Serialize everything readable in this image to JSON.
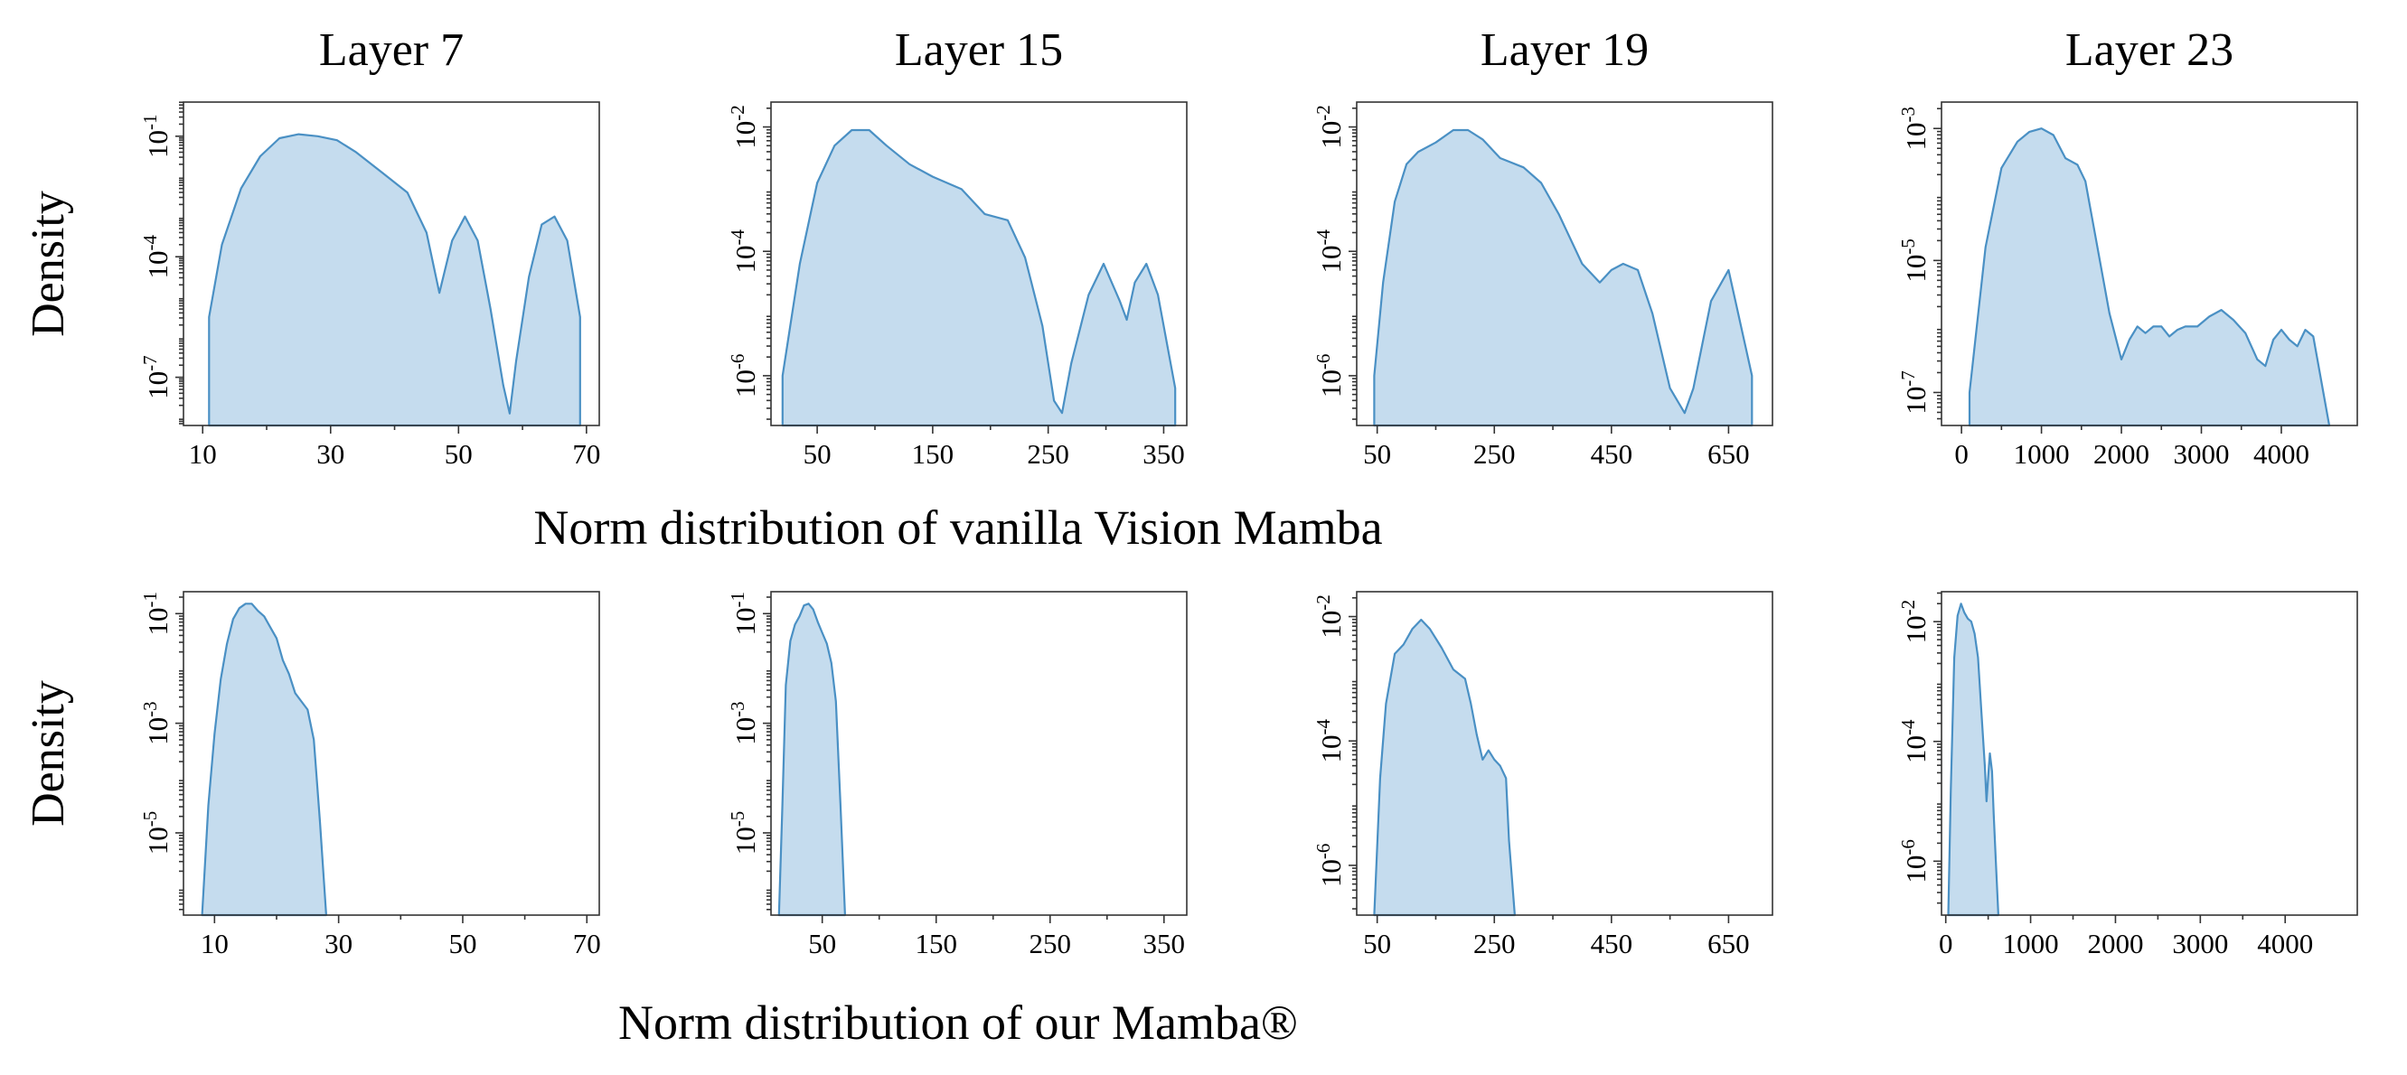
{
  "row_captions": [
    "Norm distribution of vanilla Vision Mamba",
    "Norm distribution of our Mamba®"
  ],
  "chart_data": [
    {
      "row": 0,
      "col": 0,
      "type": "area",
      "title": "Layer 7",
      "ylabel": "Density",
      "yscale": "log",
      "xlim": [
        7,
        72
      ],
      "ylim": [
        -8.2,
        -0.15
      ],
      "xticks": [
        10,
        30,
        50,
        70
      ],
      "xtick_labels": [
        "10",
        "30",
        "50",
        "70"
      ],
      "yticks": [
        -1,
        -4,
        -7
      ],
      "ytick_labels": [
        "10-1",
        "10-4",
        "10-7"
      ],
      "x": [
        11,
        13,
        16,
        19,
        22,
        25,
        28,
        31,
        34,
        38,
        42,
        45,
        47,
        49,
        51,
        53,
        55,
        57,
        58,
        59,
        61,
        63,
        65,
        67,
        69
      ],
      "log10_y": [
        -5.5,
        -3.7,
        -2.3,
        -1.5,
        -1.05,
        -0.95,
        -1.0,
        -1.1,
        -1.4,
        -1.9,
        -2.4,
        -3.4,
        -4.9,
        -3.6,
        -3.0,
        -3.6,
        -5.3,
        -7.2,
        -7.9,
        -6.6,
        -4.5,
        -3.2,
        -3.0,
        -3.6,
        -5.5
      ]
    },
    {
      "row": 0,
      "col": 1,
      "type": "area",
      "title": "Layer 15",
      "ylabel": "",
      "yscale": "log",
      "xlim": [
        10,
        370
      ],
      "ylim": [
        -6.8,
        -1.6
      ],
      "xticks": [
        50,
        150,
        250,
        350
      ],
      "xtick_labels": [
        "50",
        "150",
        "250",
        "350"
      ],
      "yticks": [
        -2,
        -4,
        -6
      ],
      "ytick_labels": [
        "10-2",
        "10-4",
        "10-6"
      ],
      "x": [
        20,
        35,
        50,
        65,
        80,
        95,
        110,
        130,
        150,
        175,
        195,
        215,
        230,
        245,
        255,
        262,
        270,
        285,
        298,
        312,
        318,
        325,
        335,
        345,
        360
      ],
      "log10_y": [
        -6.0,
        -4.2,
        -2.9,
        -2.3,
        -2.05,
        -2.05,
        -2.3,
        -2.6,
        -2.8,
        -3.0,
        -3.4,
        -3.5,
        -4.1,
        -5.2,
        -6.4,
        -6.6,
        -5.8,
        -4.7,
        -4.2,
        -4.8,
        -5.1,
        -4.5,
        -4.2,
        -4.7,
        -6.2
      ]
    },
    {
      "row": 0,
      "col": 2,
      "type": "area",
      "title": "Layer 19",
      "ylabel": "",
      "yscale": "log",
      "xlim": [
        15,
        725
      ],
      "ylim": [
        -6.8,
        -1.6
      ],
      "xticks": [
        50,
        250,
        450,
        650
      ],
      "xtick_labels": [
        "50",
        "250",
        "450",
        "650"
      ],
      "yticks": [
        -2,
        -4,
        -6
      ],
      "ytick_labels": [
        "10-2",
        "10-4",
        "10-6"
      ],
      "x": [
        45,
        60,
        80,
        100,
        120,
        150,
        180,
        205,
        230,
        260,
        300,
        330,
        360,
        400,
        430,
        450,
        470,
        495,
        520,
        550,
        575,
        590,
        620,
        650,
        690
      ],
      "log10_y": [
        -6.0,
        -4.5,
        -3.2,
        -2.6,
        -2.4,
        -2.25,
        -2.05,
        -2.05,
        -2.2,
        -2.5,
        -2.65,
        -2.9,
        -3.4,
        -4.2,
        -4.5,
        -4.3,
        -4.2,
        -4.3,
        -5.0,
        -6.2,
        -6.6,
        -6.2,
        -4.8,
        -4.3,
        -6.0
      ]
    },
    {
      "row": 0,
      "col": 3,
      "type": "area",
      "title": "Layer 23",
      "ylabel": "",
      "yscale": "log",
      "xlim": [
        -250,
        4950
      ],
      "ylim": [
        -7.5,
        -2.6
      ],
      "xticks": [
        0,
        1000,
        2000,
        3000,
        4000
      ],
      "xtick_labels": [
        "0",
        "1000",
        "2000",
        "3000",
        "4000"
      ],
      "yticks": [
        -3,
        -5,
        -7
      ],
      "ytick_labels": [
        "10-3",
        "10-5",
        "10-7"
      ],
      "x": [
        100,
        300,
        500,
        700,
        850,
        1000,
        1150,
        1300,
        1450,
        1550,
        1700,
        1850,
        2000,
        2100,
        2200,
        2300,
        2400,
        2500,
        2600,
        2700,
        2800,
        2950,
        3100,
        3250,
        3400,
        3550,
        3700,
        3800,
        3900,
        4000,
        4100,
        4200,
        4300,
        4400,
        4600
      ],
      "log10_y": [
        -7.0,
        -4.8,
        -3.6,
        -3.2,
        -3.05,
        -3.0,
        -3.1,
        -3.45,
        -3.55,
        -3.8,
        -4.8,
        -5.8,
        -6.5,
        -6.2,
        -6.0,
        -6.1,
        -6.0,
        -6.0,
        -6.15,
        -6.05,
        -6.0,
        -6.0,
        -5.85,
        -5.75,
        -5.9,
        -6.1,
        -6.5,
        -6.6,
        -6.2,
        -6.05,
        -6.2,
        -6.3,
        -6.05,
        -6.15,
        -7.5
      ]
    },
    {
      "row": 1,
      "col": 0,
      "type": "area",
      "title": "",
      "ylabel": "Density",
      "yscale": "log",
      "xlim": [
        5,
        72
      ],
      "ylim": [
        -6.5,
        -0.6
      ],
      "xticks": [
        10,
        30,
        50,
        70
      ],
      "xtick_labels": [
        "10",
        "30",
        "50",
        "70"
      ],
      "yticks": [
        -1,
        -3,
        -5
      ],
      "ytick_labels": [
        "10-1",
        "10-3",
        "10-5"
      ],
      "x": [
        8,
        9,
        10,
        11,
        12,
        13,
        14,
        15,
        16,
        17,
        18,
        19,
        20,
        21,
        22,
        23,
        24,
        25,
        26,
        27,
        28
      ],
      "log10_y": [
        -6.5,
        -4.5,
        -3.2,
        -2.2,
        -1.55,
        -1.1,
        -0.9,
        -0.82,
        -0.82,
        -0.95,
        -1.05,
        -1.25,
        -1.45,
        -1.85,
        -2.1,
        -2.45,
        -2.6,
        -2.75,
        -3.3,
        -4.8,
        -6.5
      ]
    },
    {
      "row": 1,
      "col": 1,
      "type": "area",
      "title": "",
      "ylabel": "",
      "yscale": "log",
      "xlim": [
        5,
        370
      ],
      "ylim": [
        -6.5,
        -0.6
      ],
      "xticks": [
        50,
        150,
        250,
        350
      ],
      "xtick_labels": [
        "50",
        "150",
        "250",
        "350"
      ],
      "yticks": [
        -1,
        -3,
        -5
      ],
      "ytick_labels": [
        "10-1",
        "10-3",
        "10-5"
      ],
      "x": [
        12,
        15,
        18,
        22,
        26,
        30,
        34,
        38,
        42,
        46,
        50,
        54,
        58,
        62,
        66,
        68,
        70
      ],
      "log10_y": [
        -6.5,
        -4.5,
        -2.3,
        -1.5,
        -1.2,
        -1.05,
        -0.85,
        -0.82,
        -0.92,
        -1.15,
        -1.35,
        -1.55,
        -1.9,
        -2.6,
        -4.5,
        -5.5,
        -6.5
      ]
    },
    {
      "row": 1,
      "col": 2,
      "type": "area",
      "title": "",
      "ylabel": "",
      "yscale": "log",
      "xlim": [
        15,
        725
      ],
      "ylim": [
        -6.8,
        -1.6
      ],
      "xticks": [
        50,
        250,
        450,
        650
      ],
      "xtick_labels": [
        "50",
        "250",
        "450",
        "650"
      ],
      "yticks": [
        -2,
        -4,
        -6
      ],
      "ytick_labels": [
        "10-2",
        "10-4",
        "10-6"
      ],
      "x": [
        45,
        55,
        65,
        80,
        95,
        110,
        125,
        140,
        160,
        180,
        200,
        210,
        220,
        230,
        240,
        250,
        260,
        270,
        275,
        285
      ],
      "log10_y": [
        -6.8,
        -4.6,
        -3.4,
        -2.6,
        -2.45,
        -2.2,
        -2.05,
        -2.2,
        -2.5,
        -2.85,
        -3.0,
        -3.4,
        -3.9,
        -4.3,
        -4.15,
        -4.3,
        -4.4,
        -4.6,
        -5.6,
        -6.8
      ]
    },
    {
      "row": 1,
      "col": 3,
      "type": "area",
      "title": "",
      "ylabel": "",
      "yscale": "log",
      "xlim": [
        -50,
        4850
      ],
      "ylim": [
        -6.9,
        -1.5
      ],
      "xticks": [
        0,
        1000,
        2000,
        3000,
        4000
      ],
      "xtick_labels": [
        "0",
        "1000",
        "2000",
        "3000",
        "4000"
      ],
      "yticks": [
        -2,
        -4,
        -6
      ],
      "ytick_labels": [
        "10-2",
        "10-4",
        "10-6"
      ],
      "x": [
        30,
        60,
        100,
        140,
        180,
        220,
        260,
        300,
        340,
        380,
        420,
        460,
        480,
        500,
        520,
        545,
        565,
        590,
        620
      ],
      "log10_y": [
        -6.9,
        -4.8,
        -2.6,
        -1.9,
        -1.7,
        -1.85,
        -1.95,
        -2.0,
        -2.2,
        -2.6,
        -3.5,
        -4.4,
        -5.0,
        -4.6,
        -4.2,
        -4.5,
        -5.2,
        -6.0,
        -6.9
      ]
    }
  ]
}
